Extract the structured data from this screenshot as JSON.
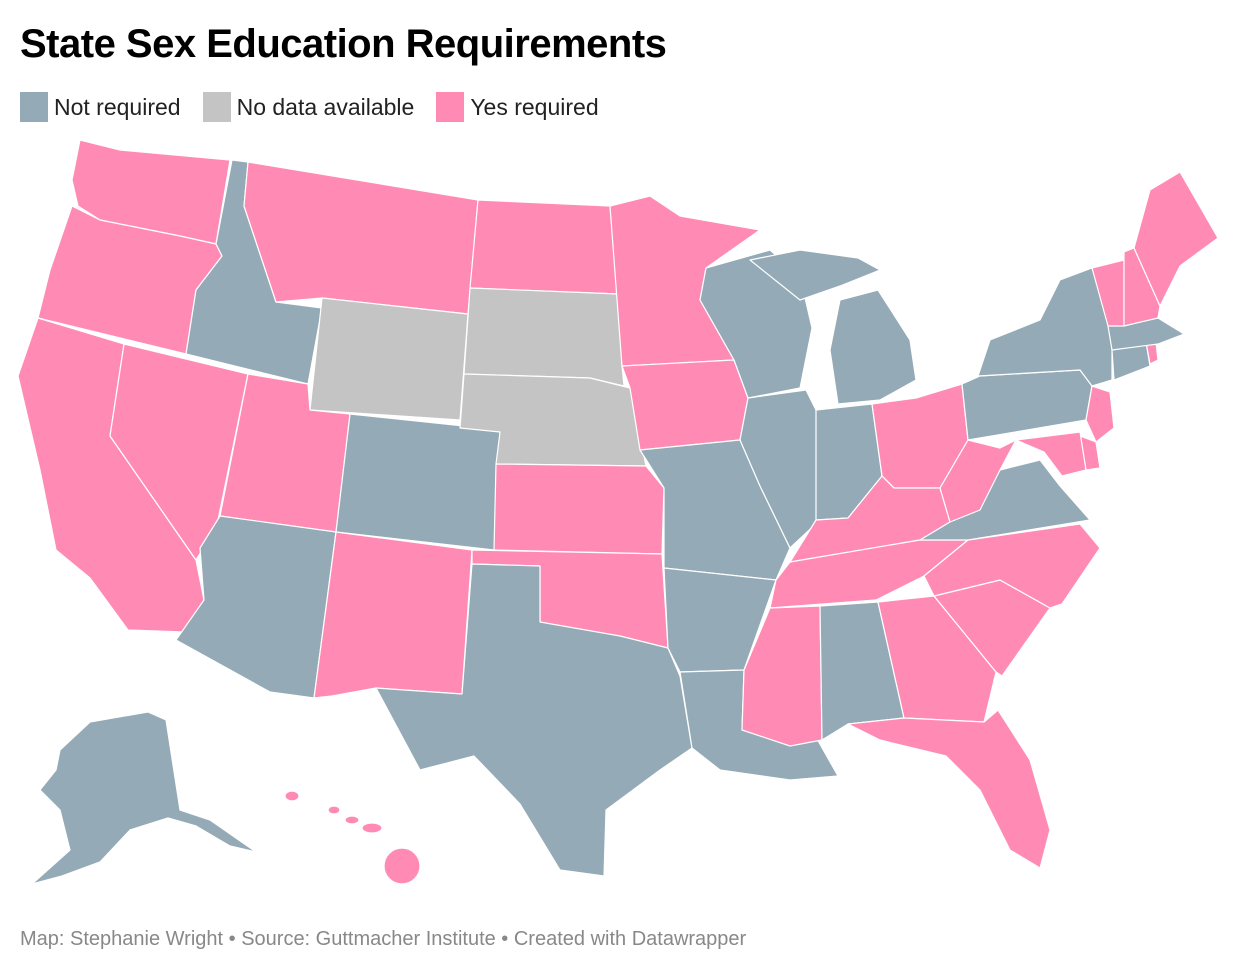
{
  "title": "State Sex Education Requirements",
  "legend": [
    {
      "label": "Not required",
      "color": "#94aab6"
    },
    {
      "label": "No data available",
      "color": "#c4c4c4"
    },
    {
      "label": "Yes required",
      "color": "#ff8bb5"
    }
  ],
  "colors": {
    "not_required": "#94aab6",
    "no_data": "#c4c4c4",
    "required": "#ff8bb5"
  },
  "states": {
    "WA": "required",
    "OR": "required",
    "CA": "required",
    "ID": "not_required",
    "NV": "required",
    "MT": "required",
    "WY": "no_data",
    "UT": "required",
    "AZ": "not_required",
    "CO": "not_required",
    "NM": "required",
    "ND": "required",
    "SD": "no_data",
    "NE": "no_data",
    "KS": "required",
    "OK": "required",
    "TX": "not_required",
    "MN": "required",
    "IA": "required",
    "MO": "not_required",
    "AR": "not_required",
    "LA": "not_required",
    "WI": "not_required",
    "IL": "not_required",
    "MI": "not_required",
    "IN": "not_required",
    "OH": "required",
    "KY": "required",
    "TN": "required",
    "MS": "required",
    "AL": "not_required",
    "GA": "required",
    "FL": "required",
    "SC": "required",
    "NC": "required",
    "VA": "not_required",
    "WV": "required",
    "PA": "not_required",
    "NY": "not_required",
    "NJ": "required",
    "DE": "required",
    "MD": "required",
    "CT": "not_required",
    "RI": "required",
    "MA": "not_required",
    "VT": "required",
    "NH": "required",
    "ME": "required",
    "AK": "not_required",
    "HI": "required"
  },
  "footer": "Map: Stephanie Wright • Source: Guttmacher Institute • Created with Datawrapper"
}
